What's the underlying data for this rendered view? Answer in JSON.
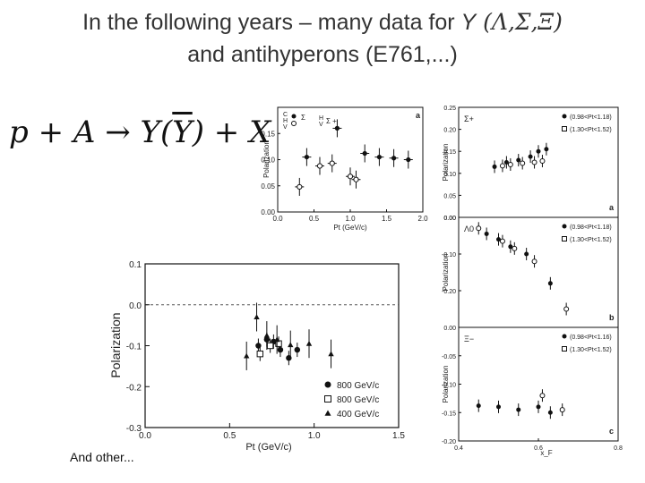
{
  "slide": {
    "title_line1_prefix": "In the following years – many data for ",
    "title_line1_Y": "Y",
    "title_line1_particles": " (Λ,Σ,Ξ)",
    "title_line2": "and antihyperons (E761,...)",
    "equation": {
      "lhs": "p + A",
      "arrow": "→",
      "Y": "Y(",
      "Ybar": "Y",
      "rest": ") + X"
    },
    "footer": "And other..."
  },
  "chart_data": [
    {
      "id": "top-left",
      "type": "scatter",
      "panel_label": "a",
      "ylabel": "Polarization",
      "xlabel": "Pt (GeV/c)",
      "xlim": [
        0.0,
        2.0
      ],
      "ylim": [
        0.0,
        0.2
      ],
      "xticks": [
        "0.0",
        "0.5",
        "1.0",
        "1.5",
        "2.0"
      ],
      "yticks": [
        "0.00",
        "0.05",
        "0.10",
        "0.15"
      ],
      "legend": [
        "C",
        "H",
        "V",
        "Σ",
        "H",
        "V",
        "Σ +"
      ],
      "series": [
        {
          "marker": "filled",
          "points": [
            [
              0.4,
              0.105
            ],
            [
              0.82,
              0.16
            ],
            [
              1.2,
              0.112
            ],
            [
              1.4,
              0.105
            ],
            [
              1.6,
              0.103
            ],
            [
              1.8,
              0.1
            ]
          ]
        },
        {
          "marker": "open",
          "points": [
            [
              0.3,
              0.048
            ],
            [
              0.58,
              0.088
            ],
            [
              0.75,
              0.093
            ],
            [
              1.0,
              0.068
            ],
            [
              1.08,
              0.062
            ]
          ]
        }
      ]
    },
    {
      "id": "right",
      "type": "scatter",
      "xlabel": "x_F",
      "xlim": [
        0.4,
        0.8
      ],
      "xticks": [
        "0.4",
        "0.6",
        "0.8"
      ],
      "panels": [
        {
          "label": "Σ+",
          "ylabel": "Polarization",
          "tag": "a",
          "ylim": [
            0.0,
            0.25
          ],
          "yticks": [
            "0.25",
            "0.20",
            "0.15",
            "0.10",
            "0.05",
            "0.00"
          ],
          "legend": [
            "(0.98<Pt<1.18)",
            "(1.30<Pt<1.52)"
          ],
          "series": [
            {
              "marker": "filled",
              "points": [
                [
                  0.49,
                  0.115
                ],
                [
                  0.52,
                  0.125
                ],
                [
                  0.55,
                  0.13
                ],
                [
                  0.58,
                  0.138
                ],
                [
                  0.6,
                  0.15
                ],
                [
                  0.62,
                  0.155
                ]
              ]
            },
            {
              "marker": "open",
              "points": [
                [
                  0.51,
                  0.117
                ],
                [
                  0.53,
                  0.12
                ],
                [
                  0.56,
                  0.123
                ],
                [
                  0.59,
                  0.125
                ],
                [
                  0.61,
                  0.128
                ]
              ]
            }
          ]
        },
        {
          "label": "Λ0",
          "ylabel": "Polarization",
          "tag": "b",
          "ylim": [
            -0.3,
            0.0
          ],
          "yticks": [
            "0.00",
            "-0.10",
            "-0.20"
          ],
          "legend": [
            "(0.98<Pt<1.18)",
            "(1.30<Pt<1.52)"
          ],
          "series": [
            {
              "marker": "filled",
              "points": [
                [
                  0.47,
                  -0.045
                ],
                [
                  0.5,
                  -0.06
                ],
                [
                  0.53,
                  -0.08
                ],
                [
                  0.57,
                  -0.1
                ],
                [
                  0.63,
                  -0.18
                ]
              ]
            },
            {
              "marker": "open",
              "points": [
                [
                  0.45,
                  -0.03
                ],
                [
                  0.51,
                  -0.065
                ],
                [
                  0.54,
                  -0.085
                ],
                [
                  0.59,
                  -0.12
                ],
                [
                  0.67,
                  -0.25
                ]
              ]
            }
          ]
        },
        {
          "label": "Ξ−",
          "ylabel": "Polarization",
          "tag": "c",
          "ylim": [
            -0.2,
            0.0
          ],
          "yticks": [
            "0.00",
            "-0.05",
            "-0.10",
            "-0.15",
            "-0.20"
          ],
          "legend": [
            "(0.98<Pt<1.16)",
            "(1.30<Pt<1.52)"
          ],
          "series": [
            {
              "marker": "filled",
              "points": [
                [
                  0.45,
                  -0.138
                ],
                [
                  0.5,
                  -0.14
                ],
                [
                  0.55,
                  -0.145
                ],
                [
                  0.6,
                  -0.14
                ],
                [
                  0.63,
                  -0.15
                ]
              ]
            },
            {
              "marker": "open",
              "points": [
                [
                  0.61,
                  -0.12
                ],
                [
                  0.66,
                  -0.145
                ]
              ]
            }
          ]
        }
      ]
    },
    {
      "id": "bottom-left",
      "type": "scatter",
      "ylabel": "Polarization",
      "xlabel": "Pt (GeV/c)",
      "xlim": [
        0.0,
        1.5
      ],
      "ylim": [
        -0.3,
        0.1
      ],
      "xticks": [
        "0.0",
        "0.5",
        "1.0",
        "1.5"
      ],
      "yticks": [
        "0.1",
        "0.0",
        "-0.1",
        "-0.2",
        "-0.3"
      ],
      "legend": [
        {
          "marker": "filled-circle",
          "label": "800 GeV/c"
        },
        {
          "marker": "open-square",
          "label": "800 GeV/c"
        },
        {
          "marker": "filled-triangle",
          "label": "400 GeV/c"
        }
      ],
      "series": [
        {
          "marker": "filled-circle",
          "points": [
            [
              0.67,
              -0.1
            ],
            [
              0.72,
              -0.085
            ],
            [
              0.76,
              -0.09
            ],
            [
              0.8,
              -0.11
            ],
            [
              0.85,
              -0.13
            ],
            [
              0.9,
              -0.11
            ]
          ]
        },
        {
          "marker": "open-square",
          "points": [
            [
              0.68,
              -0.12
            ],
            [
              0.74,
              -0.1
            ],
            [
              0.79,
              -0.095
            ]
          ]
        },
        {
          "marker": "filled-triangle",
          "points": [
            [
              0.6,
              -0.125
            ],
            [
              0.66,
              -0.03
            ],
            [
              0.72,
              -0.075
            ],
            [
              0.78,
              -0.085
            ],
            [
              0.86,
              -0.098
            ],
            [
              0.97,
              -0.095
            ],
            [
              1.1,
              -0.12
            ]
          ]
        }
      ]
    }
  ]
}
